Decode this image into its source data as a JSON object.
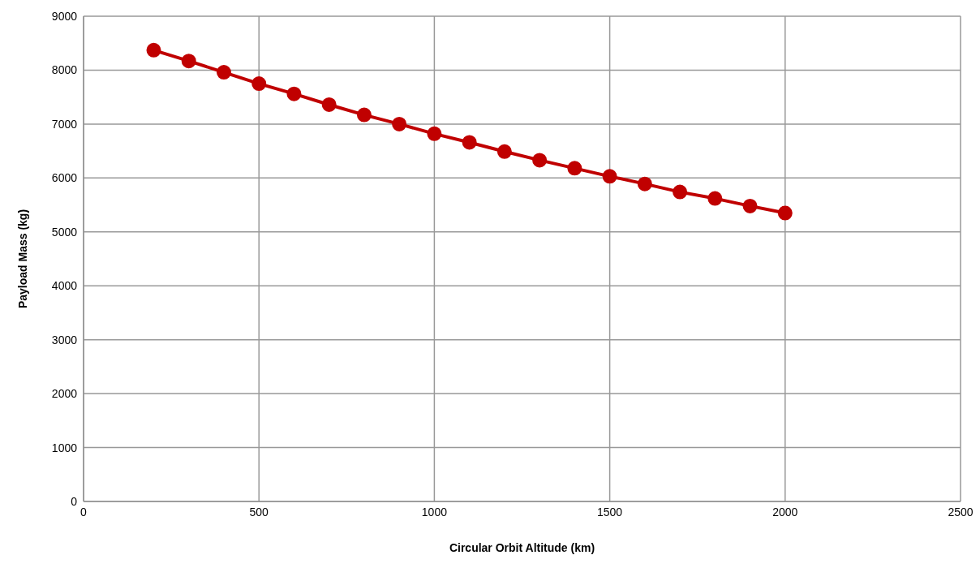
{
  "chart_data": {
    "type": "line",
    "xlabel": "Circular Orbit Altitude (km)",
    "ylabel": "Payload Mass (kg)",
    "x": [
      200,
      300,
      400,
      500,
      600,
      700,
      800,
      900,
      1000,
      1100,
      1200,
      1300,
      1400,
      1500,
      1600,
      1700,
      1800,
      1900,
      2000
    ],
    "series": [
      {
        "color": "#c00000",
        "values": [
          8370,
          8170,
          7960,
          7750,
          7560,
          7360,
          7170,
          7000,
          6820,
          6660,
          6490,
          6330,
          6180,
          6030,
          5890,
          5740,
          5620,
          5480,
          5350
        ]
      }
    ],
    "xlim": [
      0,
      2500
    ],
    "xticks": [
      0,
      500,
      1000,
      1500,
      2000,
      2500
    ],
    "ylim": [
      0,
      9000
    ],
    "yticks": [
      0,
      1000,
      2000,
      3000,
      4000,
      5000,
      6000,
      7000,
      8000,
      9000
    ],
    "grid": true,
    "marker": "circle",
    "line_style": "solid"
  }
}
